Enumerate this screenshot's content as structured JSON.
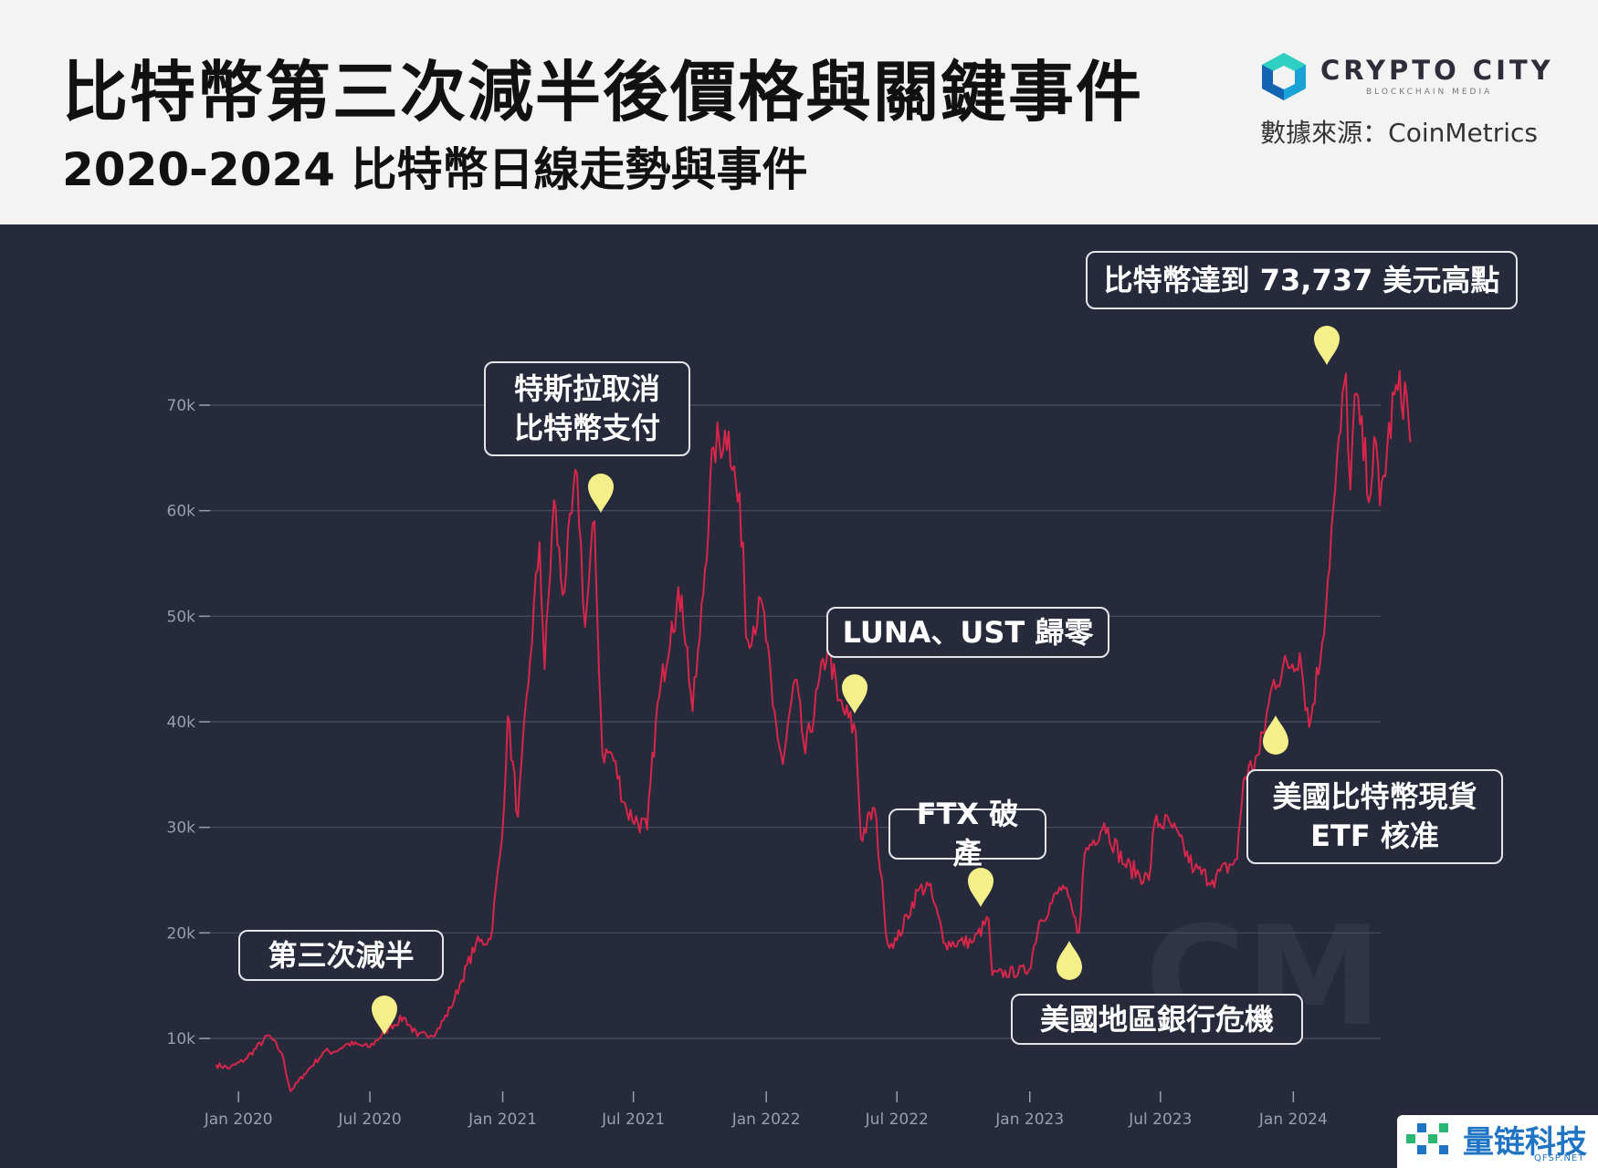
{
  "header": {
    "title": "比特幣第三次減半後價格與關鍵事件",
    "subtitle": "2020-2024 比特幣日線走勢與事件",
    "brand": "CRYPTO CITY",
    "brand_sub": "BLOCKCHAIN MEDIA",
    "source": "數據來源：CoinMetrics"
  },
  "watermark": "CM",
  "corner_logo": {
    "text": "量链科技",
    "sub": "QFSP.NET"
  },
  "colors": {
    "background": "#262a3b",
    "header_bg": "#f3f3f3",
    "line": "#d8264a",
    "pin": "#f5ef8a",
    "grid": "#4a4f66",
    "tick_text": "#9a9db0"
  },
  "annotations": [
    {
      "text": "第三次減半",
      "date": "2020-05-11"
    },
    {
      "text": "特斯拉取消\n比特幣支付",
      "date": "2021-05-12"
    },
    {
      "text": "LUNA、UST 歸零",
      "date": "2022-05-10"
    },
    {
      "text": "FTX 破產",
      "date": "2022-11-11"
    },
    {
      "text": "美國地區銀行危機",
      "date": "2023-03-10"
    },
    {
      "text": "美國比特幣現貨\nETF 核准",
      "date": "2024-01-10"
    },
    {
      "text": "比特幣達到 73,737 美元高點",
      "date": "2024-03-14"
    }
  ],
  "chart_data": {
    "type": "line",
    "title": "",
    "xlabel": "",
    "ylabel": "",
    "xlim": [
      "2019-11-15",
      "2024-05-01"
    ],
    "ylim": [
      3000,
      78000
    ],
    "grid": true,
    "y_ticks": [
      10000,
      20000,
      30000,
      40000,
      50000,
      60000,
      70000
    ],
    "y_tick_labels": [
      "10k",
      "20k",
      "30k",
      "40k",
      "50k",
      "60k",
      "70k"
    ],
    "x_ticks": [
      "2020-01-01",
      "2020-07-01",
      "2021-01-01",
      "2021-07-01",
      "2022-01-01",
      "2022-07-01",
      "2023-01-01",
      "2023-07-01",
      "2024-01-01"
    ],
    "x_tick_labels": [
      "Jan 2020",
      "Jul 2020",
      "Jan 2021",
      "Jul 2021",
      "Jan 2022",
      "Jul 2022",
      "Jan 2023",
      "Jul 2023",
      "Jan 2024"
    ],
    "series": [
      {
        "points": [
          [
            "2019-12-01",
            7500
          ],
          [
            "2019-12-20",
            7200
          ],
          [
            "2020-01-10",
            8000
          ],
          [
            "2020-02-12",
            10300
          ],
          [
            "2020-03-01",
            8600
          ],
          [
            "2020-03-13",
            5000
          ],
          [
            "2020-04-01",
            6600
          ],
          [
            "2020-04-30",
            8800
          ],
          [
            "2020-05-11",
            8700
          ],
          [
            "2020-06-01",
            9500
          ],
          [
            "2020-07-01",
            9200
          ],
          [
            "2020-07-27",
            11000
          ],
          [
            "2020-08-17",
            12000
          ],
          [
            "2020-09-05",
            10200
          ],
          [
            "2020-10-01",
            10600
          ],
          [
            "2020-10-21",
            12900
          ],
          [
            "2020-11-05",
            15500
          ],
          [
            "2020-11-25",
            19000
          ],
          [
            "2020-12-15",
            19400
          ],
          [
            "2020-12-31",
            29000
          ],
          [
            "2021-01-08",
            40500
          ],
          [
            "2021-01-22",
            31000
          ],
          [
            "2021-02-08",
            46000
          ],
          [
            "2021-02-21",
            57000
          ],
          [
            "2021-02-28",
            45000
          ],
          [
            "2021-03-13",
            61000
          ],
          [
            "2021-03-25",
            52000
          ],
          [
            "2021-04-14",
            63500
          ],
          [
            "2021-04-25",
            49000
          ],
          [
            "2021-05-08",
            59000
          ],
          [
            "2021-05-12",
            50000
          ],
          [
            "2021-05-19",
            37000
          ],
          [
            "2021-06-01",
            37000
          ],
          [
            "2021-06-22",
            31500
          ],
          [
            "2021-07-20",
            29800
          ],
          [
            "2021-08-01",
            40000
          ],
          [
            "2021-08-23",
            49500
          ],
          [
            "2021-09-06",
            52000
          ],
          [
            "2021-09-21",
            41000
          ],
          [
            "2021-10-01",
            48000
          ],
          [
            "2021-10-20",
            66000
          ],
          [
            "2021-11-10",
            67500
          ],
          [
            "2021-11-30",
            57000
          ],
          [
            "2021-12-04",
            48000
          ],
          [
            "2021-12-27",
            51000
          ],
          [
            "2022-01-10",
            41500
          ],
          [
            "2022-01-24",
            36000
          ],
          [
            "2022-02-10",
            44000
          ],
          [
            "2022-02-24",
            37000
          ],
          [
            "2022-03-28",
            47500
          ],
          [
            "2022-04-10",
            42000
          ],
          [
            "2022-05-05",
            39000
          ],
          [
            "2022-05-12",
            29000
          ],
          [
            "2022-05-31",
            31800
          ],
          [
            "2022-06-13",
            22500
          ],
          [
            "2022-06-18",
            19000
          ],
          [
            "2022-07-01",
            19300
          ],
          [
            "2022-07-30",
            24000
          ],
          [
            "2022-08-14",
            24500
          ],
          [
            "2022-09-06",
            19000
          ],
          [
            "2022-10-15",
            19200
          ],
          [
            "2022-11-05",
            21300
          ],
          [
            "2022-11-10",
            16000
          ],
          [
            "2022-12-31",
            16500
          ],
          [
            "2023-01-14",
            21000
          ],
          [
            "2023-02-16",
            24500
          ],
          [
            "2023-03-10",
            20000
          ],
          [
            "2023-03-18",
            27500
          ],
          [
            "2023-04-14",
            30400
          ],
          [
            "2023-05-12",
            26500
          ],
          [
            "2023-06-15",
            25000
          ],
          [
            "2023-06-23",
            30500
          ],
          [
            "2023-07-15",
            30300
          ],
          [
            "2023-08-17",
            26000
          ],
          [
            "2023-09-11",
            25000
          ],
          [
            "2023-10-15",
            27000
          ],
          [
            "2023-10-24",
            34500
          ],
          [
            "2023-11-15",
            37000
          ],
          [
            "2023-12-05",
            44000
          ],
          [
            "2024-01-10",
            46500
          ],
          [
            "2024-01-23",
            39500
          ],
          [
            "2024-02-10",
            47500
          ],
          [
            "2024-02-28",
            62000
          ],
          [
            "2024-03-14",
            73000
          ],
          [
            "2024-03-20",
            62000
          ],
          [
            "2024-03-26",
            71000
          ],
          [
            "2024-04-17",
            61500
          ],
          [
            "2024-04-22",
            67000
          ],
          [
            "2024-04-30",
            60500
          ],
          [
            "2024-05-20",
            71000
          ],
          [
            "2024-06-06",
            71000
          ],
          [
            "2024-06-11",
            66500
          ]
        ]
      }
    ]
  }
}
